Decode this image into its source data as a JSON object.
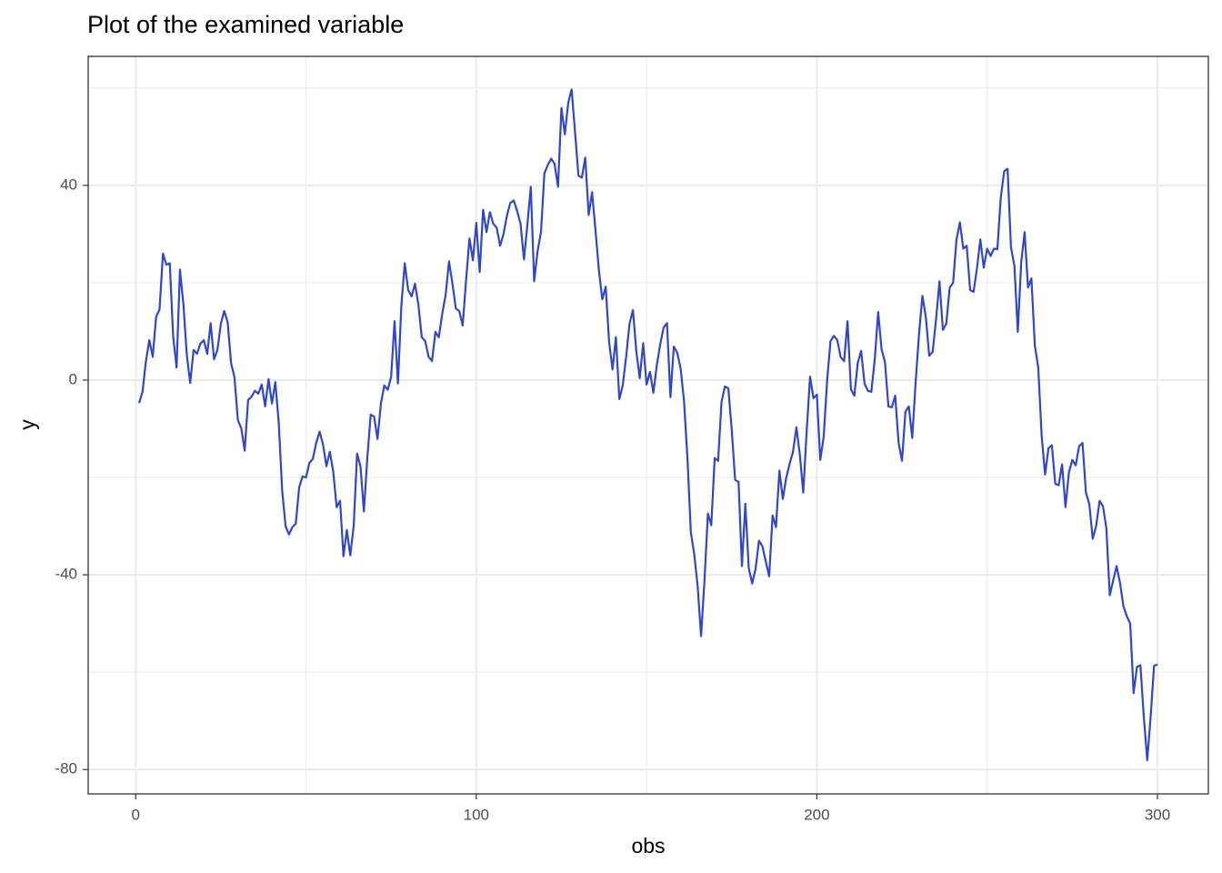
{
  "chart_data": {
    "type": "line",
    "title": "Plot of the examined variable",
    "x_label": "obs",
    "y_label": "y",
    "color": "#3047c9",
    "grid": true,
    "xlim": [
      -13.95,
      314.95
    ],
    "xticks": [
      0,
      100,
      200,
      300
    ],
    "x_minor_ticks": [
      50,
      150,
      250
    ],
    "ylim": [
      -85,
      66.5
    ],
    "yticks": [
      -80,
      -40,
      0,
      40
    ],
    "y_minor_ticks": [
      -60,
      -20,
      20,
      60
    ],
    "x": [
      1,
      2,
      3,
      4,
      5,
      6,
      7,
      8,
      9,
      10,
      11,
      12,
      13,
      14,
      15,
      16,
      17,
      18,
      19,
      20,
      21,
      22,
      23,
      24,
      25,
      26,
      27,
      28,
      29,
      30,
      31,
      32,
      33,
      34,
      35,
      36,
      37,
      38,
      39,
      40,
      41,
      42,
      43,
      44,
      45,
      46,
      47,
      48,
      49,
      50,
      51,
      52,
      53,
      54,
      55,
      56,
      57,
      58,
      59,
      60,
      61,
      62,
      63,
      64,
      65,
      66,
      67,
      68,
      69,
      70,
      71,
      72,
      73,
      74,
      75,
      76,
      77,
      78,
      79,
      80,
      81,
      82,
      83,
      84,
      85,
      86,
      87,
      88,
      89,
      90,
      91,
      92,
      93,
      94,
      95,
      96,
      97,
      98,
      99,
      100,
      101,
      102,
      103,
      104,
      105,
      106,
      107,
      108,
      109,
      110,
      111,
      112,
      113,
      114,
      115,
      116,
      117,
      118,
      119,
      120,
      121,
      122,
      123,
      124,
      125,
      126,
      127,
      128,
      129,
      130,
      131,
      132,
      133,
      134,
      135,
      136,
      137,
      138,
      139,
      140,
      141,
      142,
      143,
      144,
      145,
      146,
      147,
      148,
      149,
      150,
      151,
      152,
      153,
      154,
      155,
      156,
      157,
      158,
      159,
      160,
      161,
      162,
      163,
      164,
      165,
      166,
      167,
      168,
      169,
      170,
      171,
      172,
      173,
      174,
      175,
      176,
      177,
      178,
      179,
      180,
      181,
      182,
      183,
      184,
      185,
      186,
      187,
      188,
      189,
      190,
      191,
      192,
      193,
      194,
      195,
      196,
      197,
      198,
      199,
      200,
      201,
      202,
      203,
      204,
      205,
      206,
      207,
      208,
      209,
      210,
      211,
      212,
      213,
      214,
      215,
      216,
      217,
      218,
      219,
      220,
      221,
      222,
      223,
      224,
      225,
      226,
      227,
      228,
      229,
      230,
      231,
      232,
      233,
      234,
      235,
      236,
      237,
      238,
      239,
      240,
      241,
      242,
      243,
      244,
      245,
      246,
      247,
      248,
      249,
      250,
      251,
      252,
      253,
      254,
      255,
      256,
      257,
      258,
      259,
      260,
      261,
      262,
      263,
      264,
      265,
      266,
      267,
      268,
      269,
      270,
      271,
      272,
      273,
      274,
      275,
      276,
      277,
      278,
      279,
      280,
      281,
      282,
      283,
      284,
      285,
      286,
      287,
      288,
      289,
      290,
      291,
      292,
      293,
      294,
      295,
      296,
      297,
      298,
      299,
      300
    ],
    "values": [
      -4.7,
      -2.4,
      3.9,
      8.2,
      4.8,
      13,
      14.5,
      26,
      23.7,
      24,
      9,
      2.6,
      22.7,
      15.6,
      5.2,
      -0.6,
      6.2,
      5.4,
      7.5,
      8.2,
      5.4,
      11.7,
      4.3,
      6.2,
      11.6,
      14.2,
      11.9,
      3.5,
      0.6,
      -8.2,
      -9.9,
      -14.5,
      -4.1,
      -3.4,
      -2.2,
      -2.8,
      -0.9,
      -5.4,
      0.2,
      -4.8,
      -0.4,
      -8.8,
      -22.6,
      -30,
      -31.7,
      -30.2,
      -29.5,
      -22,
      -19.8,
      -20,
      -17,
      -16.2,
      -12.9,
      -10.6,
      -13.2,
      -17.7,
      -14.7,
      -18.8,
      -26.1,
      -24.8,
      -36.2,
      -30.8,
      -36,
      -30,
      -15.1,
      -17.7,
      -27,
      -16,
      -7.1,
      -7.5,
      -12.1,
      -4.8,
      -1.1,
      -2,
      0.7,
      12.1,
      -0.7,
      15.3,
      24,
      18.5,
      17.2,
      19.8,
      15.5,
      8.8,
      8,
      4.8,
      3.9,
      9.9,
      8.8,
      13.6,
      17.5,
      24.4,
      19.8,
      14.7,
      14.2,
      11.2,
      20.5,
      29.1,
      24.6,
      32.3,
      22.2,
      35,
      30.4,
      34.5,
      32.1,
      31.3,
      27.6,
      30,
      33.8,
      36.4,
      36.9,
      34.7,
      32.1,
      24.8,
      31.9,
      39.7,
      20.3,
      26.5,
      30.4,
      42.5,
      44.2,
      45.5,
      44.4,
      39.7,
      55.9,
      50.5,
      57,
      59.7,
      50.9,
      42,
      41.6,
      45.7,
      33.9,
      38.6,
      30.8,
      22.6,
      16.6,
      19.2,
      7.8,
      2.2,
      8.8,
      -3.9,
      -1.1,
      4.8,
      11.6,
      14.4,
      5.8,
      0.4,
      7.6,
      -0.9,
      1.7,
      -2.6,
      3,
      7.3,
      10.8,
      11.7,
      -3.5,
      6.9,
      5.6,
      2.4,
      -4.3,
      -16,
      -31.3,
      -35.8,
      -42.3,
      -52.6,
      -41.2,
      -27.4,
      -29.8,
      -16,
      -16.6,
      -4.5,
      -1.3,
      -1.7,
      -10.1,
      -20.5,
      -20.9,
      -38.2,
      -25.4,
      -38.6,
      -41.8,
      -38.8,
      -33,
      -34.1,
      -37.3,
      -40.3,
      -27.8,
      -30.2,
      -18.6,
      -24.4,
      -20.1,
      -17.2,
      -14.7,
      -9.7,
      -15.3,
      -23.1,
      -10.6,
      0.7,
      -3.7,
      -3,
      -16.4,
      -11.7,
      -0.2,
      8,
      9.1,
      8.2,
      4.7,
      3.9,
      12.1,
      -1.9,
      -3.2,
      3.5,
      6,
      -0.7,
      -2.2,
      -2.4,
      4.3,
      14,
      6.3,
      3.7,
      -5.4,
      -5.6,
      -3.2,
      -12.9,
      -16.6,
      -6.5,
      -5.4,
      -11.9,
      -0.4,
      9.5,
      17.3,
      12.9,
      5,
      5.8,
      12.5,
      20.3,
      10.3,
      11.6,
      19,
      20,
      28.9,
      32.4,
      27,
      27.6,
      18.5,
      18.1,
      22.9,
      28.9,
      23.1,
      27,
      25.5,
      27,
      26.9,
      37.5,
      42.9,
      43.4,
      27.2,
      23.5,
      9.9,
      24.2,
      30.4,
      19,
      20.9,
      7.1,
      2.6,
      -11.4,
      -19.4,
      -14,
      -13.4,
      -21.3,
      -21.6,
      -17.3,
      -26.1,
      -19,
      -16.4,
      -17.5,
      -13.6,
      -12.9,
      -23.1,
      -25.5,
      -32.6,
      -30,
      -24.8,
      -25.9,
      -30.4,
      -44.2,
      -41.2,
      -38.2,
      -41.6,
      -46.4,
      -48.5,
      -50,
      -64.3,
      -58.9,
      -58.6,
      -69.2,
      -78.1,
      -69.2,
      -58.7,
      -58.4
    ]
  }
}
